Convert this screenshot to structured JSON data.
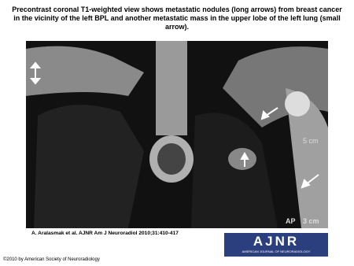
{
  "header": {
    "title": "Precontrast coronal T1-weighted view shows metastatic nodules (long arrows) from breast cancer in the vicinity of the left BPL and another metastatic mass in the upper lobe of the left lung (small arrow)."
  },
  "figure": {
    "labels": [
      "5 cm",
      "AP",
      "3 cm"
    ]
  },
  "citation": "A. Aralasmak et al. AJNR Am J Neuroradiol 2010;31:410-417",
  "logo": {
    "name": "AJNR",
    "subtitle": "AMERICAN JOURNAL OF NEURORADIOLOGY"
  },
  "copyright": "©2010 by American Society of Neuroradiology"
}
